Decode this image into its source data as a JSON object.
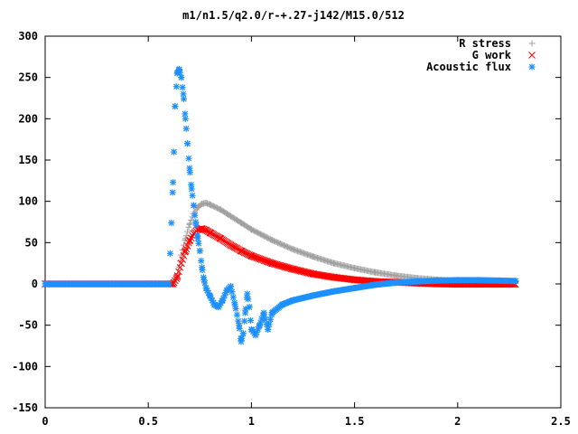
{
  "chart_data": {
    "type": "scatter",
    "title": "m1/n1.5/q2.0/r-+.27-j142/M15.0/512",
    "xlabel": "",
    "ylabel": "",
    "xlim": [
      0,
      2.5
    ],
    "ylim": [
      -150,
      300
    ],
    "x_ticks": [
      "0",
      "0.5",
      "1",
      "1.5",
      "2",
      "2.5"
    ],
    "y_ticks": [
      "-150",
      "-100",
      "-50",
      "0",
      "50",
      "100",
      "150",
      "200",
      "250",
      "300"
    ],
    "grid": false,
    "legend_position": "top-right",
    "series": [
      {
        "name": "R stress",
        "color": "#a0a0a0",
        "marker": "plus",
        "points": [
          [
            0.0,
            0
          ],
          [
            0.5,
            0
          ],
          [
            0.62,
            0
          ],
          [
            0.64,
            10
          ],
          [
            0.66,
            35
          ],
          [
            0.68,
            55
          ],
          [
            0.7,
            72
          ],
          [
            0.72,
            85
          ],
          [
            0.74,
            93
          ],
          [
            0.76,
            97
          ],
          [
            0.78,
            98
          ],
          [
            0.8,
            96
          ],
          [
            0.85,
            90
          ],
          [
            0.9,
            82
          ],
          [
            0.95,
            74
          ],
          [
            1.0,
            66
          ],
          [
            1.1,
            53
          ],
          [
            1.2,
            42
          ],
          [
            1.3,
            33
          ],
          [
            1.4,
            25
          ],
          [
            1.5,
            19
          ],
          [
            1.6,
            14
          ],
          [
            1.7,
            10
          ],
          [
            1.8,
            7
          ],
          [
            1.9,
            5
          ],
          [
            2.0,
            3.5
          ],
          [
            2.1,
            2.5
          ],
          [
            2.2,
            2
          ],
          [
            2.28,
            1.5
          ]
        ]
      },
      {
        "name": "G work",
        "color": "#ff0000",
        "marker": "cross",
        "points": [
          [
            0.0,
            0
          ],
          [
            0.5,
            0
          ],
          [
            0.62,
            0
          ],
          [
            0.64,
            8
          ],
          [
            0.66,
            25
          ],
          [
            0.68,
            40
          ],
          [
            0.7,
            52
          ],
          [
            0.72,
            61
          ],
          [
            0.74,
            66
          ],
          [
            0.76,
            67
          ],
          [
            0.78,
            65
          ],
          [
            0.8,
            62
          ],
          [
            0.85,
            55
          ],
          [
            0.9,
            47
          ],
          [
            0.95,
            40
          ],
          [
            1.0,
            34
          ],
          [
            1.1,
            25
          ],
          [
            1.2,
            18
          ],
          [
            1.3,
            12
          ],
          [
            1.4,
            8
          ],
          [
            1.5,
            5
          ],
          [
            1.6,
            3
          ],
          [
            1.7,
            2
          ],
          [
            1.8,
            1
          ],
          [
            1.9,
            0
          ],
          [
            2.0,
            -0.5
          ],
          [
            2.1,
            -0.5
          ],
          [
            2.2,
            -0.5
          ],
          [
            2.28,
            -0.5
          ]
        ]
      },
      {
        "name": "Acoustic flux",
        "color": "#1e90ff",
        "marker": "star",
        "points": [
          [
            0.0,
            0
          ],
          [
            0.5,
            0
          ],
          [
            0.6,
            0
          ],
          [
            0.62,
            123
          ],
          [
            0.63,
            215
          ],
          [
            0.64,
            255
          ],
          [
            0.65,
            260
          ],
          [
            0.66,
            250
          ],
          [
            0.67,
            230
          ],
          [
            0.68,
            200
          ],
          [
            0.69,
            170
          ],
          [
            0.7,
            140
          ],
          [
            0.71,
            115
          ],
          [
            0.72,
            95
          ],
          [
            0.73,
            75
          ],
          [
            0.74,
            55
          ],
          [
            0.75,
            40
          ],
          [
            0.76,
            20
          ],
          [
            0.77,
            5
          ],
          [
            0.78,
            -5
          ],
          [
            0.8,
            -15
          ],
          [
            0.82,
            -25
          ],
          [
            0.84,
            -28
          ],
          [
            0.86,
            -20
          ],
          [
            0.88,
            -8
          ],
          [
            0.9,
            -3
          ],
          [
            0.92,
            -25
          ],
          [
            0.94,
            -50
          ],
          [
            0.95,
            -70
          ],
          [
            0.96,
            -60
          ],
          [
            0.97,
            -35
          ],
          [
            0.98,
            -12
          ],
          [
            0.99,
            -28
          ],
          [
            1.0,
            -55
          ],
          [
            1.02,
            -62
          ],
          [
            1.04,
            -50
          ],
          [
            1.06,
            -35
          ],
          [
            1.08,
            -55
          ],
          [
            1.1,
            -35
          ],
          [
            1.15,
            -25
          ],
          [
            1.2,
            -20
          ],
          [
            1.3,
            -14
          ],
          [
            1.4,
            -9
          ],
          [
            1.5,
            -5
          ],
          [
            1.6,
            -1
          ],
          [
            1.7,
            1.5
          ],
          [
            1.8,
            3
          ],
          [
            1.9,
            4
          ],
          [
            2.0,
            4.5
          ],
          [
            2.1,
            4.5
          ],
          [
            2.2,
            4
          ],
          [
            2.28,
            3.5
          ]
        ]
      }
    ]
  }
}
